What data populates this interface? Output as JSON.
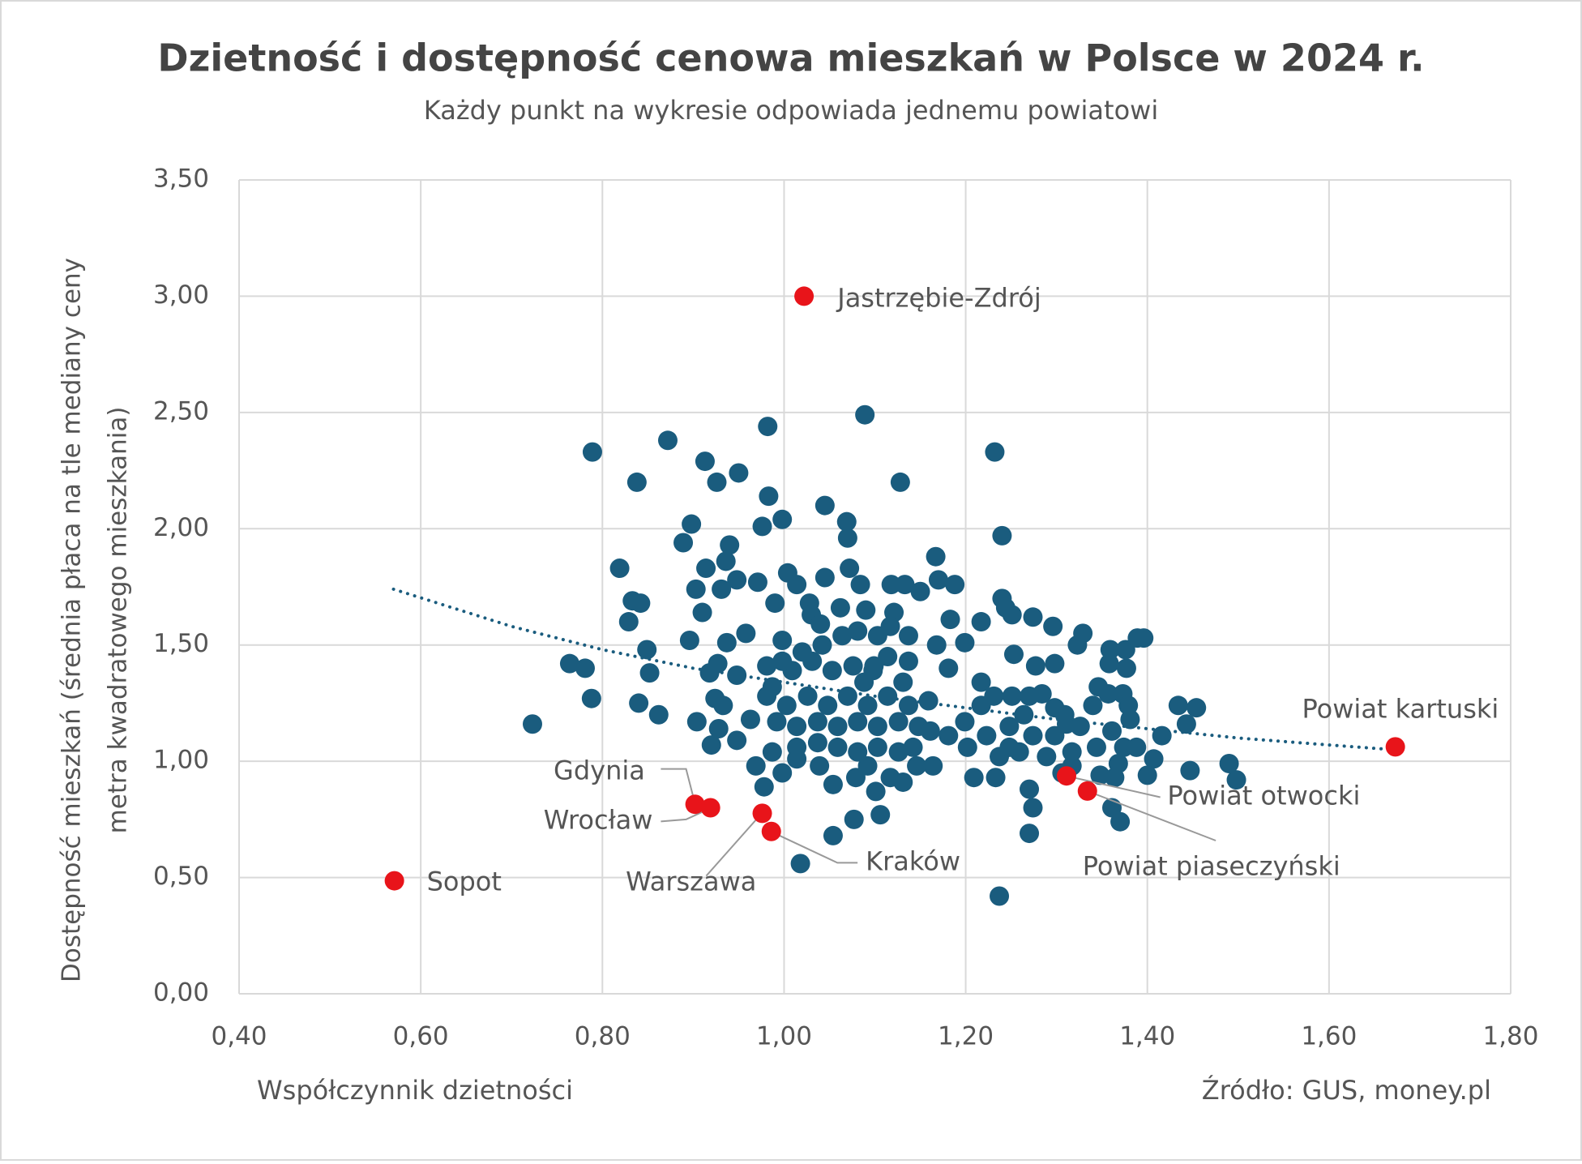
{
  "chart_data": {
    "type": "scatter",
    "title": "Dzietność i dostępność cenowa mieszkań w Polsce w 2024 r.",
    "subtitle": "Każdy punkt na wykresie odpowiada jednemu powiatowi",
    "x_label": "Współczynnik dzietności",
    "y_label": [
      "Dostępność mieszkań (średnia płaca na tle mediany ceny",
      "metra kwadratowego mieszkania)"
    ],
    "source": "Źródło: GUS, money.pl",
    "xlim": [
      0.4,
      1.8
    ],
    "xticks": [
      {
        "value": 0.4,
        "label": "0,40"
      },
      {
        "value": 0.6,
        "label": "0,60"
      },
      {
        "value": 0.8,
        "label": "0,80"
      },
      {
        "value": 1.0,
        "label": "1,00"
      },
      {
        "value": 1.2,
        "label": "1,20"
      },
      {
        "value": 1.4,
        "label": "1,40"
      },
      {
        "value": 1.6,
        "label": "1,60"
      },
      {
        "value": 1.8,
        "label": "1,80"
      }
    ],
    "ylim": [
      0,
      3.5
    ],
    "yticks": [
      {
        "value": 0,
        "label": "0,00"
      },
      {
        "value": 0.5,
        "label": "0,50"
      },
      {
        "value": 1.0,
        "label": "1,00"
      },
      {
        "value": 1.5,
        "label": "1,50"
      },
      {
        "value": 2.0,
        "label": "2,00"
      },
      {
        "value": 2.5,
        "label": "2,50"
      },
      {
        "value": 3.0,
        "label": "3,00"
      },
      {
        "value": 3.5,
        "label": "3,50"
      }
    ],
    "grid": true,
    "trendline": {
      "color": "#1a5c7e",
      "style": "dotted",
      "x": [
        0.57,
        0.7,
        0.8,
        0.9,
        1.0,
        1.1,
        1.2,
        1.3,
        1.4,
        1.5,
        1.6,
        1.67
      ],
      "values": [
        1.74,
        1.58,
        1.48,
        1.4,
        1.34,
        1.28,
        1.23,
        1.18,
        1.14,
        1.1,
        1.07,
        1.05
      ]
    },
    "series": [
      {
        "color": "#1a5c7e",
        "x": [
          0.789,
          0.838,
          0.872,
          0.913,
          0.926,
          0.95,
          0.982,
          1.089,
          1.232,
          1.128,
          0.983,
          1.045,
          0.898,
          0.998,
          0.976,
          1.069,
          1.24,
          1.07,
          0.889,
          0.94,
          0.819,
          0.936,
          0.914,
          1.167,
          1.072,
          1.004,
          0.833,
          0.842,
          0.829,
          0.903,
          0.931,
          0.948,
          0.971,
          1.014,
          1.045,
          1.084,
          1.118,
          1.133,
          1.15,
          1.17,
          1.188,
          1.24,
          1.244,
          1.251,
          1.274,
          1.296,
          1.217,
          1.183,
          0.91,
          0.99,
          1.028,
          1.062,
          1.09,
          1.121,
          1.03,
          1.04,
          0.958,
          0.937,
          0.896,
          0.849,
          0.852,
          0.764,
          0.781,
          0.788,
          0.84,
          0.862,
          0.723,
          0.904,
          0.924,
          0.933,
          0.928,
          0.92,
          0.948,
          0.963,
          0.948,
          0.927,
          0.918,
          0.981,
          1.168,
          1.199,
          1.181,
          1.217,
          1.253,
          1.277,
          1.298,
          1.329,
          1.323,
          1.359,
          1.376,
          1.389,
          1.396,
          1.377,
          1.358,
          1.346,
          1.34,
          1.373,
          1.379,
          1.381,
          1.361,
          1.344,
          1.374,
          1.388,
          1.416,
          1.434,
          1.443,
          1.454,
          1.407,
          1.368,
          1.364,
          1.348,
          1.4,
          1.447,
          1.49,
          1.498,
          1.361,
          1.37,
          1.27,
          1.274,
          1.27,
          1.237,
          1.209,
          1.233,
          1.237,
          1.259,
          1.289,
          1.317,
          1.311,
          1.298,
          1.27,
          1.251,
          1.231,
          1.217,
          1.199,
          1.181,
          1.164,
          1.202,
          1.223,
          1.248,
          1.274,
          1.298,
          1.159,
          1.137,
          1.114,
          1.092,
          1.07,
          1.048,
          1.026,
          1.003,
          0.987,
          1.009,
          1.031,
          1.053,
          1.076,
          1.098,
          1.114,
          1.103,
          1.081,
          1.064,
          1.042,
          1.02,
          0.998,
          0.998,
          0.981,
          0.992,
          1.014,
          1.037,
          1.059,
          1.081,
          1.103,
          1.126,
          1.148,
          1.014,
          1.037,
          1.059,
          1.081,
          1.103,
          1.126,
          1.142,
          0.987,
          0.969,
          0.978,
          0.998,
          1.014,
          1.039,
          1.054,
          1.079,
          1.092,
          1.101,
          1.117,
          1.131,
          1.146,
          1.106,
          1.077,
          1.054,
          1.018,
          1.161,
          1.117,
          1.137,
          1.099,
          1.088,
          1.137,
          1.131,
          1.357,
          1.284,
          1.309,
          1.326,
          1.248,
          1.264,
          1.306,
          1.317
        ],
        "values": [
          2.33,
          2.2,
          2.38,
          2.29,
          2.2,
          2.24,
          2.44,
          2.49,
          2.33,
          2.2,
          2.14,
          2.1,
          2.02,
          2.04,
          2.01,
          2.03,
          1.97,
          1.96,
          1.94,
          1.93,
          1.83,
          1.86,
          1.83,
          1.88,
          1.83,
          1.81,
          1.69,
          1.68,
          1.6,
          1.74,
          1.74,
          1.78,
          1.77,
          1.76,
          1.79,
          1.76,
          1.76,
          1.76,
          1.73,
          1.78,
          1.76,
          1.7,
          1.66,
          1.63,
          1.62,
          1.58,
          1.6,
          1.61,
          1.64,
          1.68,
          1.68,
          1.66,
          1.65,
          1.64,
          1.63,
          1.59,
          1.55,
          1.51,
          1.52,
          1.48,
          1.38,
          1.42,
          1.4,
          1.27,
          1.25,
          1.2,
          1.16,
          1.17,
          1.27,
          1.24,
          1.14,
          1.07,
          1.09,
          1.18,
          1.37,
          1.42,
          1.38,
          1.41,
          1.5,
          1.51,
          1.4,
          1.34,
          1.46,
          1.41,
          1.42,
          1.55,
          1.5,
          1.48,
          1.48,
          1.53,
          1.53,
          1.4,
          1.42,
          1.32,
          1.24,
          1.29,
          1.24,
          1.18,
          1.13,
          1.06,
          1.06,
          1.06,
          1.11,
          1.24,
          1.16,
          1.23,
          1.01,
          0.99,
          0.93,
          0.94,
          0.94,
          0.96,
          0.99,
          0.92,
          0.8,
          0.74,
          0.88,
          0.8,
          0.69,
          0.42,
          0.93,
          0.93,
          1.02,
          1.04,
          1.02,
          1.04,
          1.16,
          1.23,
          1.28,
          1.28,
          1.28,
          1.24,
          1.17,
          1.11,
          0.98,
          1.06,
          1.11,
          1.15,
          1.11,
          1.11,
          1.26,
          1.24,
          1.28,
          1.24,
          1.28,
          1.24,
          1.28,
          1.24,
          1.32,
          1.39,
          1.43,
          1.39,
          1.41,
          1.39,
          1.45,
          1.54,
          1.56,
          1.54,
          1.5,
          1.47,
          1.52,
          1.43,
          1.28,
          1.17,
          1.15,
          1.17,
          1.15,
          1.17,
          1.15,
          1.17,
          1.15,
          1.06,
          1.08,
          1.06,
          1.04,
          1.06,
          1.04,
          1.06,
          1.04,
          0.98,
          0.89,
          0.95,
          1.01,
          0.98,
          0.9,
          0.93,
          0.98,
          0.87,
          0.93,
          0.91,
          0.98,
          0.77,
          0.75,
          0.68,
          0.56,
          1.13,
          1.58,
          1.54,
          1.41,
          1.34,
          1.43,
          1.34,
          1.29,
          1.29,
          1.2,
          1.15,
          1.06,
          1.2,
          0.95,
          0.98
        ]
      },
      {
        "color": "#e8141a",
        "x": [
          1.022,
          0.571,
          0.902,
          0.919,
          0.976,
          0.986,
          1.311,
          1.334,
          1.673
        ],
        "values": [
          3.0,
          0.486,
          0.815,
          0.8,
          0.776,
          0.698,
          0.937,
          0.872,
          1.062
        ],
        "point_labels": [
          "Jastrzębie-Zdrój",
          "Sopot",
          "Gdynia",
          "Wrocław",
          "Warszawa",
          "Kraków",
          "Powiat otwocki",
          "Powiat piaseczyński",
          "Powiat kartuski"
        ]
      }
    ]
  }
}
